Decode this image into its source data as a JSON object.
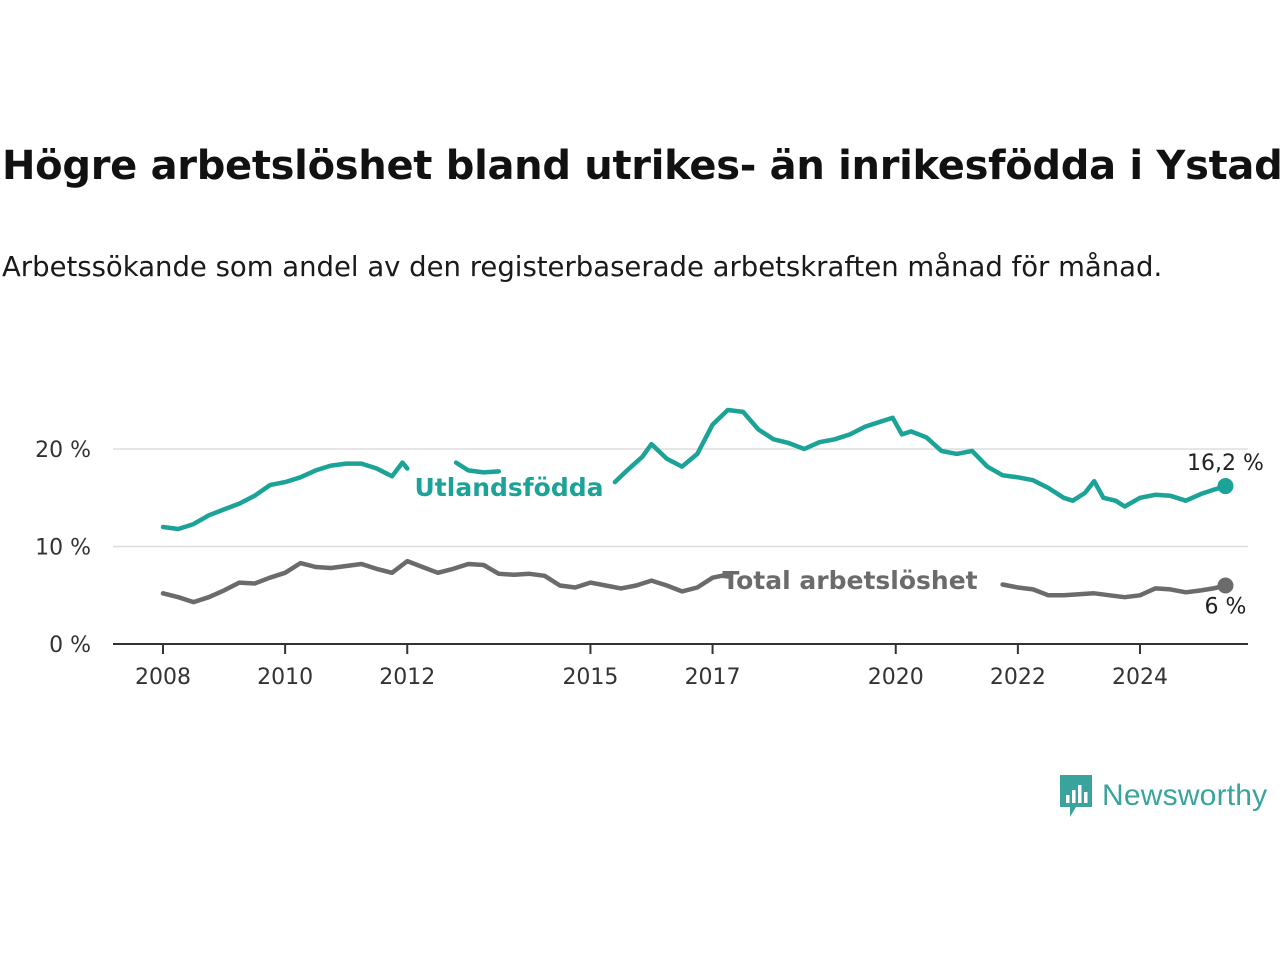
{
  "title": "Högre arbetslöshet bland utrikes- än inrikesfödda i Ystad",
  "subtitle": "Arbetssökande som andel av den registerbaserade arbetskraften månad för månad.",
  "brand": {
    "name": "Newsworthy",
    "color": "#3aa39b"
  },
  "chart_data": {
    "type": "line",
    "title": "Högre arbetslöshet bland utrikes- än inrikesfödda i Ystad",
    "subtitle": "Arbetssökande som andel av den registerbaserade arbetskraften månad för månad.",
    "xlabel": "",
    "ylabel": "",
    "x_ticks": [
      "2008",
      "2010",
      "2012",
      "2015",
      "2017",
      "2020",
      "2022",
      "2024"
    ],
    "y_ticks": [
      "0 %",
      "10 %",
      "20 %"
    ],
    "xlim": [
      2007.9,
      2026.5
    ],
    "ylim": [
      0,
      25
    ],
    "grid": "horizontal",
    "legend": "inline labels",
    "series": [
      {
        "name": "Utlandsfödda",
        "color": "#1aa396",
        "end_label": "16,2 %",
        "points": [
          [
            2008.0,
            12.0
          ],
          [
            2008.25,
            11.8
          ],
          [
            2008.5,
            12.3
          ],
          [
            2008.75,
            13.2
          ],
          [
            2009.0,
            13.8
          ],
          [
            2009.25,
            14.4
          ],
          [
            2009.5,
            15.2
          ],
          [
            2009.75,
            16.3
          ],
          [
            2010.0,
            16.6
          ],
          [
            2010.25,
            17.1
          ],
          [
            2010.5,
            17.8
          ],
          [
            2010.75,
            18.3
          ],
          [
            2011.0,
            18.5
          ],
          [
            2011.25,
            18.5
          ],
          [
            2011.5,
            18.0
          ],
          [
            2011.75,
            17.2
          ],
          [
            2011.92,
            18.6
          ],
          [
            2012.0,
            18.0
          ],
          [
            2012.8,
            18.6
          ],
          [
            2013.0,
            17.8
          ],
          [
            2013.25,
            17.6
          ],
          [
            2013.5,
            17.7
          ],
          [
            2015.4,
            16.6
          ],
          [
            2015.6,
            17.8
          ],
          [
            2015.85,
            19.2
          ],
          [
            2016.0,
            20.5
          ],
          [
            2016.25,
            19.0
          ],
          [
            2016.5,
            18.2
          ],
          [
            2016.75,
            19.5
          ],
          [
            2017.0,
            22.5
          ],
          [
            2017.25,
            24.0
          ],
          [
            2017.5,
            23.8
          ],
          [
            2017.75,
            22.0
          ],
          [
            2018.0,
            21.0
          ],
          [
            2018.25,
            20.6
          ],
          [
            2018.5,
            20.0
          ],
          [
            2018.75,
            20.7
          ],
          [
            2019.0,
            21.0
          ],
          [
            2019.25,
            21.5
          ],
          [
            2019.5,
            22.3
          ],
          [
            2019.75,
            22.8
          ],
          [
            2019.95,
            23.2
          ],
          [
            2020.1,
            21.5
          ],
          [
            2020.25,
            21.8
          ],
          [
            2020.5,
            21.2
          ],
          [
            2020.75,
            19.8
          ],
          [
            2021.0,
            19.5
          ],
          [
            2021.25,
            19.8
          ],
          [
            2021.5,
            18.2
          ],
          [
            2021.75,
            17.3
          ],
          [
            2022.0,
            17.1
          ],
          [
            2022.25,
            16.8
          ],
          [
            2022.5,
            16.0
          ],
          [
            2022.75,
            15.0
          ],
          [
            2022.9,
            14.7
          ],
          [
            2023.1,
            15.5
          ],
          [
            2023.25,
            16.7
          ],
          [
            2023.4,
            15.0
          ],
          [
            2023.6,
            14.7
          ],
          [
            2023.75,
            14.1
          ],
          [
            2024.0,
            15.0
          ],
          [
            2024.25,
            15.3
          ],
          [
            2024.5,
            15.2
          ],
          [
            2024.75,
            14.7
          ],
          [
            2025.0,
            15.4
          ],
          [
            2025.2,
            15.8
          ],
          [
            2025.4,
            16.2
          ]
        ]
      },
      {
        "name": "Total arbetslöshet",
        "color": "#6b6b6b",
        "end_label": "6 %",
        "points": [
          [
            2008.0,
            5.2
          ],
          [
            2008.25,
            4.8
          ],
          [
            2008.5,
            4.3
          ],
          [
            2008.75,
            4.8
          ],
          [
            2009.0,
            5.5
          ],
          [
            2009.25,
            6.3
          ],
          [
            2009.5,
            6.2
          ],
          [
            2009.75,
            6.8
          ],
          [
            2010.0,
            7.3
          ],
          [
            2010.25,
            8.3
          ],
          [
            2010.5,
            7.9
          ],
          [
            2010.75,
            7.8
          ],
          [
            2011.0,
            8.0
          ],
          [
            2011.25,
            8.2
          ],
          [
            2011.5,
            7.7
          ],
          [
            2011.75,
            7.3
          ],
          [
            2012.0,
            8.5
          ],
          [
            2012.25,
            7.9
          ],
          [
            2012.5,
            7.3
          ],
          [
            2012.75,
            7.7
          ],
          [
            2013.0,
            8.2
          ],
          [
            2013.25,
            8.1
          ],
          [
            2013.5,
            7.2
          ],
          [
            2013.75,
            7.1
          ],
          [
            2014.0,
            7.2
          ],
          [
            2014.25,
            7.0
          ],
          [
            2014.5,
            6.0
          ],
          [
            2014.75,
            5.8
          ],
          [
            2015.0,
            6.3
          ],
          [
            2015.25,
            6.0
          ],
          [
            2015.5,
            5.7
          ],
          [
            2015.75,
            6.0
          ],
          [
            2016.0,
            6.5
          ],
          [
            2016.25,
            6.0
          ],
          [
            2016.5,
            5.4
          ],
          [
            2016.75,
            5.8
          ],
          [
            2017.0,
            6.8
          ],
          [
            2017.15,
            7.0
          ],
          [
            2017.3,
            6.9
          ],
          [
            2021.75,
            6.1
          ],
          [
            2022.0,
            5.8
          ],
          [
            2022.25,
            5.6
          ],
          [
            2022.5,
            5.0
          ],
          [
            2022.75,
            5.0
          ],
          [
            2023.0,
            5.1
          ],
          [
            2023.25,
            5.2
          ],
          [
            2023.5,
            5.0
          ],
          [
            2023.75,
            4.8
          ],
          [
            2024.0,
            5.0
          ],
          [
            2024.25,
            5.7
          ],
          [
            2024.5,
            5.6
          ],
          [
            2024.75,
            5.3
          ],
          [
            2025.0,
            5.5
          ],
          [
            2025.2,
            5.7
          ],
          [
            2025.4,
            6.0
          ]
        ]
      }
    ]
  }
}
